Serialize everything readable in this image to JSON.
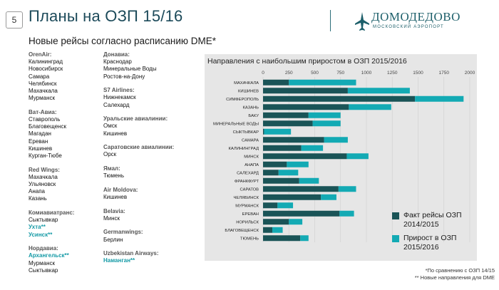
{
  "slide": {
    "number": "5",
    "title": "Планы на ОЗП 15/16",
    "subtitle": "Новые рейсы согласно расписанию DME*",
    "logo_name": "ДОМОДЕДОВО",
    "logo_sub": "МОСКОВСКИЙ АЭРОПОРТ"
  },
  "routes_col1": [
    {
      "airline": "OrenAir:",
      "cities": [
        {
          "name": "Калининград"
        },
        {
          "name": "Новосибирск"
        },
        {
          "name": "Самара"
        },
        {
          "name": "Челябинск"
        },
        {
          "name": "Махачкала"
        },
        {
          "name": "Мурманск"
        }
      ]
    },
    {
      "airline": "Ват-Авиа:",
      "cities": [
        {
          "name": "Ставрополь"
        },
        {
          "name": "Благовещенск"
        },
        {
          "name": "Магадан"
        },
        {
          "name": "Ереван"
        },
        {
          "name": "Кишинев"
        },
        {
          "name": "Курган-Тюбе"
        }
      ]
    },
    {
      "airline": "Red Wings:",
      "cities": [
        {
          "name": "Махачкала"
        },
        {
          "name": "Ульяновск"
        },
        {
          "name": "Анапа"
        },
        {
          "name": "Казань"
        }
      ]
    },
    {
      "airline": "Комиавиатранс:",
      "cities": [
        {
          "name": "Сыктывкар"
        },
        {
          "name": "Ухта**",
          "new": true
        },
        {
          "name": "Усинск**",
          "new": true
        }
      ]
    },
    {
      "airline": "Нордавиа:",
      "cities": [
        {
          "name": "Архангельск**",
          "new": true
        },
        {
          "name": "Мурманск"
        },
        {
          "name": "Сыктывкар"
        }
      ]
    }
  ],
  "routes_col2": [
    {
      "airline": "Донавиа:",
      "cities": [
        {
          "name": "Краснодар"
        },
        {
          "name": "Минеральные Воды"
        },
        {
          "name": "Ростов-на-Дону"
        }
      ]
    },
    {
      "airline": "S7 Airlines:",
      "cities": [
        {
          "name": "Нижнекамск"
        },
        {
          "name": "Салехард"
        }
      ]
    },
    {
      "airline": "Уральские авиалинии:",
      "cities": [
        {
          "name": "Омск"
        },
        {
          "name": "Кишинев"
        }
      ]
    },
    {
      "airline": "Саратовские авиалинии:",
      "cities": [
        {
          "name": "Орск"
        }
      ]
    },
    {
      "airline": "Ямал:",
      "cities": [
        {
          "name": "Тюмень"
        }
      ]
    },
    {
      "airline": "Air Moldova:",
      "cities": [
        {
          "name": "Кишинев"
        }
      ]
    },
    {
      "airline": "Belavia:",
      "cities": [
        {
          "name": "Минск"
        }
      ]
    },
    {
      "airline": "Germanwings:",
      "cities": [
        {
          "name": "Берлин"
        }
      ]
    },
    {
      "airline": "Uzbekistan Airways:",
      "cities": [
        {
          "name": "Наманган**",
          "new": true
        }
      ]
    }
  ],
  "chart_data": {
    "type": "bar",
    "orientation": "horizontal",
    "stacked": true,
    "title": "Направления с наибольшим приростом в ОЗП 2015/2016",
    "xlim": [
      0,
      2000
    ],
    "xticks": [
      0,
      250,
      500,
      750,
      1000,
      1250,
      1500,
      1750,
      2000
    ],
    "categories": [
      "МАХАЧКАЛА",
      "КИШИНЕВ",
      "СИМФЕРОПОЛЬ",
      "КАЗАНЬ",
      "БАКУ",
      "МИНЕРАЛЬНЫЕ ВОДЫ",
      "СЫКТЫВКАР",
      "САМАРА",
      "КАЛИНИНГРАД",
      "МИНСК",
      "АНАПА",
      "САЛЕХАРД",
      "ФРАНКФУРТ",
      "САРАТОВ",
      "ЧЕЛЯБИНСК",
      "МУРМАНСК",
      "ЕРЕВАН",
      "НОРИЛЬСК",
      "БЛАГОВЕЩЕНСК",
      "ТЮМЕНЬ"
    ],
    "series": [
      {
        "name": "Факт рейсы ОЗП 2014/2015",
        "color": "#1a5457",
        "values": [
          250,
          820,
          1470,
          830,
          440,
          480,
          10,
          590,
          370,
          810,
          230,
          150,
          350,
          730,
          560,
          140,
          740,
          250,
          90,
          360
        ]
      },
      {
        "name": "Прирост в ОЗП 2015/2016",
        "color": "#13aab4",
        "values": [
          650,
          600,
          470,
          410,
          310,
          270,
          260,
          230,
          210,
          210,
          210,
          190,
          190,
          170,
          150,
          150,
          140,
          130,
          100,
          80
        ]
      }
    ],
    "grid": true,
    "legend_position": "bottom-right"
  },
  "footnotes": [
    "*По сравнению с ОЗП 14/15",
    "** Новые направления для DME"
  ]
}
